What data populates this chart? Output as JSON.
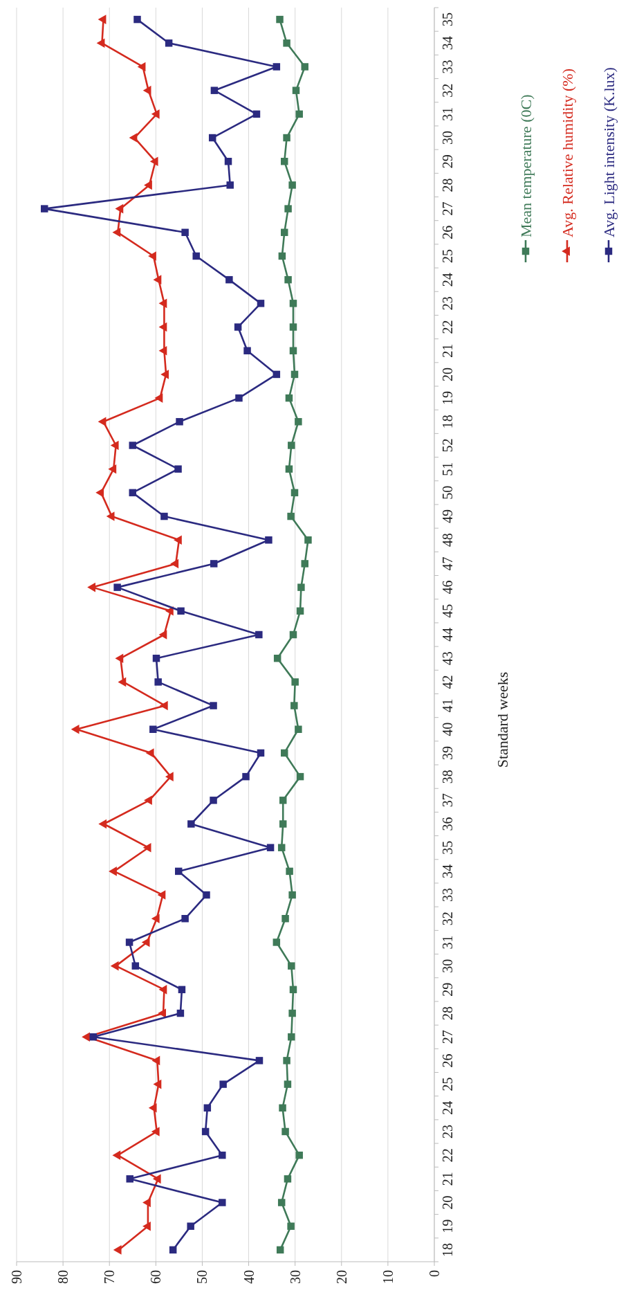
{
  "chart_data": {
    "type": "line",
    "orientation": "horizontal",
    "ylabel": "Standard weeks",
    "categories": [
      "35",
      "34",
      "33",
      "32",
      "31",
      "30",
      "29",
      "28",
      "27",
      "26",
      "25",
      "24",
      "23",
      "22",
      "21",
      "20",
      "19",
      "18",
      "52",
      "51",
      "50",
      "49",
      "48",
      "47",
      "46",
      "45",
      "44",
      "43",
      "42",
      "41",
      "40",
      "39",
      "38",
      "37",
      "36",
      "35",
      "34",
      "33",
      "32",
      "31",
      "30",
      "29",
      "28",
      "27",
      "26",
      "25",
      "24",
      "23",
      "22",
      "21",
      "20",
      "19",
      "18"
    ],
    "series": [
      {
        "name": "Mean temperature (0C)",
        "color": "#3f7a58",
        "values": [
          33.3,
          31.8,
          27.9,
          29.8,
          29.1,
          31.8,
          32.3,
          30.6,
          31.5,
          32.3,
          32.8,
          31.5,
          30.4,
          30.4,
          30.4,
          30.1,
          31.3,
          29.3,
          30.8,
          31.3,
          30.1,
          30.9,
          27.2,
          27.9,
          28.7,
          28.9,
          30.4,
          33.8,
          30,
          30.2,
          29.3,
          32.3,
          28.9,
          32.6,
          32.6,
          32.9,
          31.2,
          30.6,
          32.1,
          34,
          30.8,
          30.4,
          30.6,
          30.8,
          31.8,
          31.6,
          32.7,
          32.1,
          29.1,
          31.6,
          32.9,
          30.9,
          33.2
        ]
      },
      {
        "name": "Avg. Relative humidity (%)",
        "color": "#d42a1e",
        "marker": "triangle",
        "values": [
          71.3,
          71.6,
          62.8,
          61.6,
          59.8,
          64.6,
          60.1,
          61.4,
          67.6,
          68.2,
          60.5,
          59.4,
          58.2,
          58.2,
          58.2,
          57.8,
          59.1,
          71.3,
          68.6,
          69.1,
          71.8,
          69.5,
          55,
          55.7,
          73.6,
          56.8,
          58.2,
          67.6,
          67,
          58,
          77.1,
          61,
          56.8,
          61.4,
          71.2,
          61.6,
          69,
          58.5,
          59.8,
          61.9,
          68.6,
          58.2,
          58.4,
          74.8,
          59.7,
          59.4,
          60.4,
          59.8,
          68.2,
          59.5,
          61.7,
          61.7,
          68
        ]
      },
      {
        "name": "Avg. Light intensity (K.lux)",
        "color": "#2b2a80",
        "values": [
          64,
          57.2,
          34,
          47.4,
          38.3,
          47.8,
          44.4,
          44,
          84,
          53.7,
          51.3,
          44.2,
          37.4,
          42.3,
          40.3,
          34,
          42.1,
          54.9,
          65,
          55.2,
          65,
          58.2,
          35.7,
          47.5,
          68.3,
          54.6,
          37.8,
          59.9,
          59.5,
          47.6,
          60.6,
          37.4,
          40.6,
          47.6,
          52.4,
          35.3,
          55.1,
          49.1,
          53.7,
          65.7,
          64.4,
          54.4,
          54.7,
          73.5,
          37.7,
          45.5,
          48.9,
          49.3,
          45.7,
          65.6,
          45.7,
          52.5,
          56.3
        ]
      }
    ],
    "xlim": [
      90,
      0
    ],
    "xticks": [
      90,
      80,
      70,
      60,
      50,
      40,
      30,
      20,
      10,
      0
    ],
    "grid": "x",
    "marker": "square",
    "legend": "top right"
  }
}
